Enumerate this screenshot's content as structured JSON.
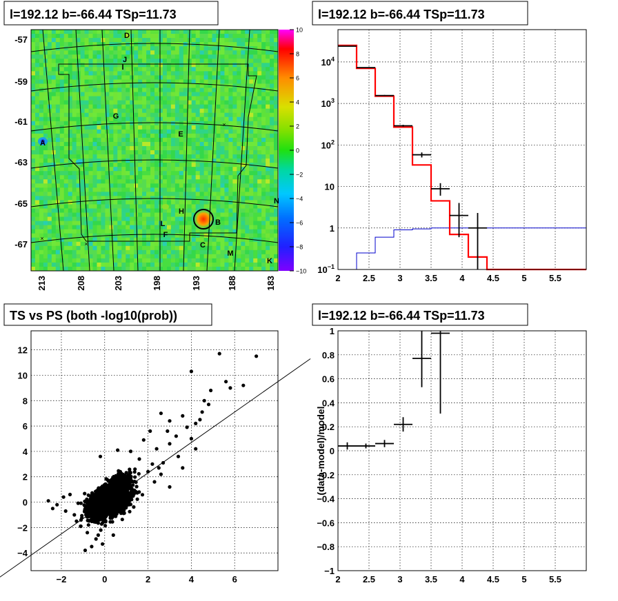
{
  "chart_data": [
    {
      "type": "heatmap",
      "title": "l=192.12 b=-66.44 TSp=11.73",
      "y_ticks": [
        "-57",
        "-59",
        "-61",
        "-63",
        "-65",
        "-67"
      ],
      "x_ticks": [
        "213",
        "208",
        "203",
        "198",
        "193",
        "188",
        "183"
      ],
      "colorbar": {
        "min": -10,
        "max": 10,
        "ticks": [
          "10",
          "8",
          "6",
          "4",
          "2",
          "0",
          "−2",
          "−4",
          "−6",
          "−8",
          "−10"
        ]
      },
      "sources": [
        "A",
        "B",
        "C",
        "D",
        "E",
        "G",
        "H",
        "I",
        "J",
        "K",
        "L",
        "M",
        "N",
        "F"
      ],
      "peak_value": 10
    },
    {
      "type": "histogram",
      "title": "l=192.12 b=-66.44 TSp=11.73",
      "xlim": [
        2,
        6
      ],
      "ylim": [
        0.1,
        60000
      ],
      "log_y": true,
      "grid": true,
      "x_ticks": [
        "2",
        "2.5",
        "3",
        "3.5",
        "4",
        "4.5",
        "5",
        "5.5"
      ],
      "y_ticks": [
        "10^-1",
        "1",
        "10",
        "10^2",
        "10^3",
        "10^4"
      ],
      "bin_edges": [
        2.0,
        2.3,
        2.6,
        2.9,
        3.2,
        3.5,
        3.8,
        4.1,
        4.4,
        4.7,
        5.0,
        5.3,
        5.6,
        5.9
      ],
      "model_red": [
        25000,
        7000,
        1500,
        270,
        33,
        4.5,
        0.7,
        0.2,
        0.1,
        0.1,
        0.1,
        0.1,
        0.1
      ],
      "model_blue": [
        0.1,
        0.25,
        0.6,
        0.9,
        0.95,
        1.0,
        1.0,
        1.0,
        1.0,
        1.0,
        1.0,
        1.0,
        1.0
      ],
      "data_points": [
        {
          "x": 2.15,
          "y": 24000,
          "ylo": 23700,
          "yhi": 24300
        },
        {
          "x": 2.45,
          "y": 7300,
          "ylo": 7150,
          "yhi": 7450
        },
        {
          "x": 2.75,
          "y": 1550,
          "ylo": 1500,
          "yhi": 1600
        },
        {
          "x": 3.05,
          "y": 290,
          "ylo": 275,
          "yhi": 305
        },
        {
          "x": 3.35,
          "y": 58,
          "ylo": 50,
          "yhi": 66
        },
        {
          "x": 3.65,
          "y": 8.8,
          "ylo": 6,
          "yhi": 12
        },
        {
          "x": 3.95,
          "y": 2,
          "ylo": 0.6,
          "yhi": 4
        },
        {
          "x": 4.25,
          "y": 1,
          "ylo": 0.1,
          "yhi": 2.3
        }
      ]
    },
    {
      "type": "scatter",
      "title": "TS vs PS (both -log10(prob))",
      "xlim": [
        -3.4,
        8
      ],
      "ylim": [
        -5.4,
        13.5
      ],
      "grid": true,
      "x_ticks": [
        "−2",
        "0",
        "2",
        "4",
        "6"
      ],
      "y_ticks": [
        "−4",
        "−2",
        "0",
        "2",
        "4",
        "6",
        "8",
        "10",
        "12"
      ],
      "fit_line": {
        "slope": 1.2,
        "intercept": -0.1
      },
      "outliers": [
        [
          5.3,
          11.7
        ],
        [
          7.0,
          11.5
        ],
        [
          4.0,
          10.3
        ],
        [
          5.6,
          9.5
        ],
        [
          6.4,
          9.2
        ],
        [
          5.8,
          9.0
        ],
        [
          4.9,
          8.8
        ],
        [
          4.6,
          8.0
        ],
        [
          4.8,
          7.7
        ],
        [
          4.5,
          7.1
        ],
        [
          4.4,
          6.5
        ],
        [
          2.6,
          7.0
        ],
        [
          3.6,
          6.8
        ],
        [
          3.0,
          6.4
        ],
        [
          4.2,
          6.2
        ],
        [
          3.8,
          5.9
        ],
        [
          2.9,
          5.6
        ],
        [
          3.3,
          5.2
        ],
        [
          4.0,
          5.0
        ],
        [
          3.0,
          4.6
        ],
        [
          2.1,
          5.6
        ],
        [
          1.8,
          4.9
        ],
        [
          2.4,
          4.2
        ],
        [
          4.2,
          4.2
        ],
        [
          3.4,
          3.6
        ],
        [
          2.7,
          3.1
        ],
        [
          2.2,
          3.0
        ],
        [
          1.6,
          3.4
        ],
        [
          2.0,
          2.4
        ],
        [
          2.6,
          2.2
        ],
        [
          1.4,
          2.6
        ],
        [
          3.6,
          2.7
        ],
        [
          -2.6,
          0.1
        ],
        [
          -2.2,
          -0.2
        ],
        [
          -2.4,
          -0.5
        ],
        [
          -1.9,
          0.4
        ],
        [
          -1.8,
          -0.7
        ],
        [
          -1.6,
          0.6
        ],
        [
          -1.4,
          -1.0
        ],
        [
          -0.9,
          -3.8
        ],
        [
          -0.6,
          -3.5
        ],
        [
          -0.4,
          -2.9
        ],
        [
          -0.8,
          -2.4
        ],
        [
          -1.1,
          -1.9
        ],
        [
          -0.3,
          -2.6
        ],
        [
          -1.3,
          -1.5
        ],
        [
          -0.1,
          -3.3
        ],
        [
          0.4,
          -2.6
        ],
        [
          2.5,
          2.7
        ],
        [
          2.3,
          1.6
        ],
        [
          3.0,
          1.2
        ],
        [
          1.2,
          4.0
        ],
        [
          0.6,
          4.1
        ],
        [
          -0.2,
          3.6
        ]
      ]
    },
    {
      "type": "errorbar",
      "title": "l=192.12 b=-66.44 TSp=11.73",
      "ylabel": "(data-model)/model",
      "xlim": [
        2,
        6
      ],
      "ylim": [
        -1,
        1
      ],
      "grid": true,
      "x_ticks": [
        "2",
        "2.5",
        "3",
        "3.5",
        "4",
        "4.5",
        "5",
        "5.5"
      ],
      "y_ticks": [
        "−1",
        "−0.8",
        "−0.6",
        "−0.4",
        "−0.2",
        "0",
        "0.2",
        "0.4",
        "0.6",
        "0.8",
        "1"
      ],
      "points": [
        {
          "x": 2.15,
          "y": 0.04,
          "ylo": 0.01,
          "yhi": 0.07
        },
        {
          "x": 2.45,
          "y": 0.04,
          "ylo": 0.02,
          "yhi": 0.06
        },
        {
          "x": 2.75,
          "y": 0.06,
          "ylo": 0.03,
          "yhi": 0.09
        },
        {
          "x": 3.05,
          "y": 0.22,
          "ylo": 0.16,
          "yhi": 0.28
        },
        {
          "x": 3.35,
          "y": 0.77,
          "ylo": 0.53,
          "yhi": 1.0
        },
        {
          "x": 3.65,
          "y": 0.98,
          "ylo": 0.31,
          "yhi": 1.0
        }
      ]
    }
  ]
}
